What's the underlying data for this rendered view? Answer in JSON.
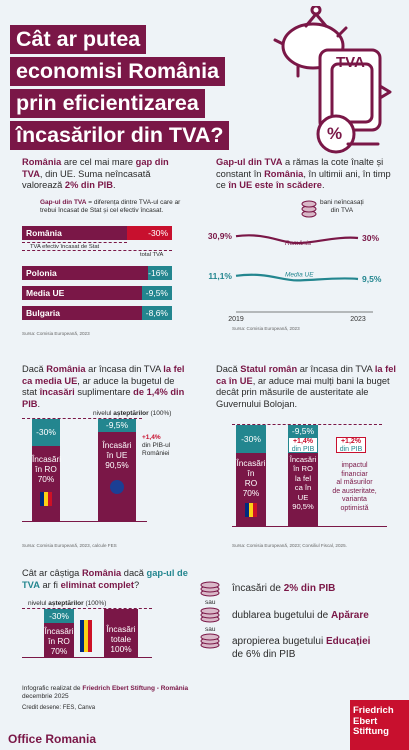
{
  "title": {
    "line1": "Cât ar putea",
    "line2": "economisi România",
    "line3": "prin eficientizarea",
    "line4": "încasărilor din TVA?"
  },
  "tva_label": "TVA",
  "percent_glyph": "%",
  "intro": {
    "p1": "România",
    "p2": " are cel mai mare ",
    "p3": "gap din TVA",
    "p4": ", din UE. Suma neîncasată valorează ",
    "p5": "2% din PIB",
    "p6": "."
  },
  "gap_def": {
    "bold": "Gap-ul din TVA",
    "rest": " = diferența dintre TVA-ul care ar trebui încasat de Stat și cel efectiv încasat."
  },
  "ro_bar": {
    "label": "România",
    "value": "-30%",
    "effective": "TVA efectiv încasat de Stat",
    "total": "total TVA"
  },
  "bars_chart": {
    "type": "bar",
    "categories": [
      "România",
      "Polonia",
      "Media UE",
      "Bulgaria"
    ],
    "values": [
      -30,
      -16,
      -9.5,
      -8.6
    ],
    "labels": [
      "-30%",
      "-16%",
      "-9,5%",
      "-8,6%"
    ]
  },
  "source1": "Sursa: Comisia Europeană, 2023",
  "line_intro": {
    "p1": "Gap-ul din TVA",
    "p2": " a rămas la cote înalte și constant în ",
    "p3": "România",
    "p4": ", în ultimii ani, în timp ce ",
    "p5": "în UE este în scădere",
    "p6": "."
  },
  "line_legend": {
    "l1": "bani neîncasați",
    "l2": "din TVA"
  },
  "chart_data": {
    "type": "line",
    "x": [
      2019,
      2023
    ],
    "series": [
      {
        "name": "România",
        "values": [
          30.9,
          30
        ],
        "labels": [
          "30,9%",
          "30%"
        ]
      },
      {
        "name": "Media UE",
        "values": [
          11.1,
          9.5
        ],
        "labels": [
          "11,1%",
          "9,5%"
        ]
      }
    ],
    "x_labels": [
      "2019",
      "2023"
    ]
  },
  "source2": "Sursa: Comisia Europeană, 2023",
  "section3": {
    "p1": "Dacă ",
    "p2": "România",
    "p3": " ar încasa din TVA ",
    "p4": "la fel ca media UE",
    "p5": ", ar aduce la bugetul de stat ",
    "p6": "încasări",
    "p7": " suplimentare ",
    "p8": "de 1,4% din PIB",
    "p9": "."
  },
  "s3": {
    "level_a": "nivelul ",
    "level_b": "așteptărilor",
    "level_c": " (100%)",
    "ro_gap": "-30%",
    "eu_gap": "-9,5%",
    "ro_col": [
      "Încasări",
      "în RO",
      "70%"
    ],
    "eu_col": [
      "Încasări",
      "în UE",
      "90,5%"
    ],
    "plus_a": "+1,4%",
    "plus_b": "din PIB-ul",
    "plus_c": "României",
    "source": "Sursa: Comisia Europeană, 2023, calcule FES"
  },
  "section4": {
    "p1": "Dacă ",
    "p2": "Statul român",
    "p3": " ar încasa din TVA ",
    "p4": "la fel ca în UE",
    "p5": ", ar aduce mai mulți bani la buget decât prin măsurile de austeritate ale Guvernului Bolojan."
  },
  "s4": {
    "ro_gap": "-30%",
    "eu_gap": "-9,5%",
    "plus1a": "+1,4%",
    "plus1b": "din PIB",
    "plus2a": "+1,2%",
    "plus2b": "din PIB",
    "ro_col": [
      "Încasări",
      "în",
      "RO",
      "70%"
    ],
    "eu_col": [
      "Încasări",
      "în RO",
      "la fel",
      "ca în",
      "UE",
      "90,5%"
    ],
    "impact": [
      "impactul",
      "financiar",
      "al măsurilor",
      "de austeritate,",
      "varianta",
      "optimistă"
    ],
    "source": "Sursa: Comisia Europeană, 2023; Consiliul Fiscal, 2025."
  },
  "section5": {
    "p1": "Cât ar câștiga ",
    "p2": "România",
    "p3": " dacă ",
    "p4": "gap-ul de TVA",
    "p5": " ar fi ",
    "p6": "eliminat complet",
    "p7": "?",
    "level_a": "nivelul ",
    "level_b": "așteptărilor",
    "level_c": " (100%)",
    "gap": "-30%",
    "ro_col": [
      "Încasări",
      "în RO",
      "70%"
    ],
    "tot_col": [
      "Încasări",
      "totale",
      "100%"
    ]
  },
  "options": {
    "o1a": "încasări de ",
    "o1b": "2% din PIB",
    "sau": "sau",
    "o2a": "dublarea bugetului de ",
    "o2b": "Apărare",
    "o3a": "apropierea bugetului ",
    "o3b": "Educației",
    "o3c": "de 6% din PIB"
  },
  "footer": {
    "credit1a": "Infografic realizat de ",
    "credit1b": "Friedrich Ebert Stiftung - România",
    "credit1c": "decembrie 2025",
    "credit2": "Credit desene: FES, Canva",
    "office": "Office Romania",
    "logo": [
      "Friedrich",
      "Ebert",
      "Stiftung"
    ]
  },
  "colors": {
    "accent": "#7a1747",
    "red": "#c8102e",
    "teal": "#23868f",
    "bg": "#eef3f7"
  }
}
